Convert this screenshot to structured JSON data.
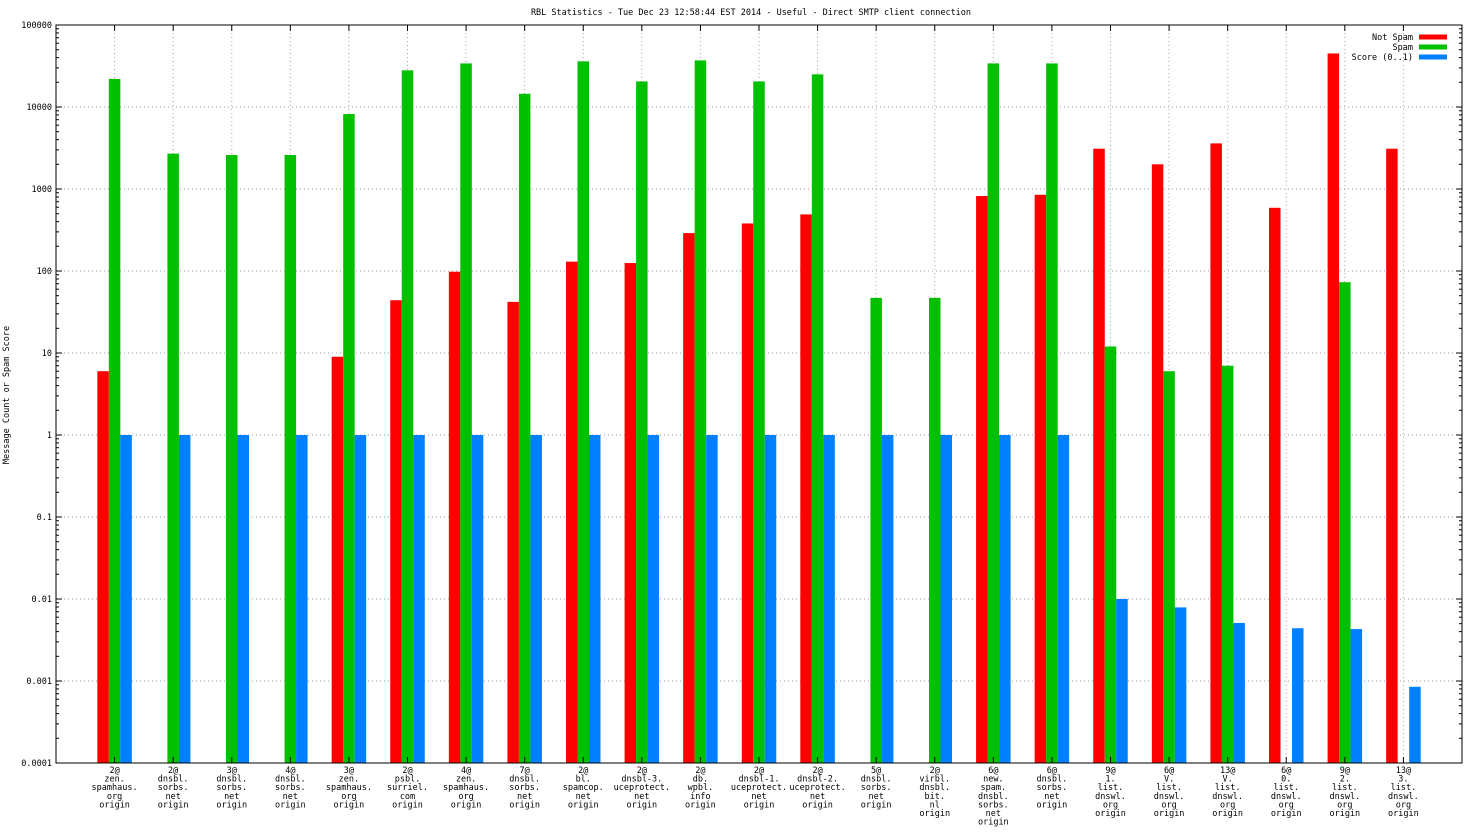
{
  "chart_data": {
    "type": "bar",
    "title": "RBL Statistics - Tue Dec 23 12:58:44 EST 2014 - Useful - Direct SMTP client connection",
    "xlabel": "",
    "ylabel": "Message Count or Spam Score",
    "yscale": "log",
    "ylim": [
      0.0001,
      100000
    ],
    "ytick_values": [
      0.0001,
      0.001,
      0.01,
      0.1,
      1,
      10,
      100,
      1000,
      10000,
      100000
    ],
    "ytick_labels": [
      "0.0001",
      "0.001",
      "0.01",
      "0.1",
      "1",
      "10",
      "100",
      "1000",
      "10000",
      "100000"
    ],
    "grid": true,
    "legend_position": "top-right",
    "categories": [
      [
        "2@",
        "zen.",
        "spamhaus.",
        "org",
        "origin"
      ],
      [
        "2@",
        "dnsbl.",
        "sorbs.",
        "net",
        "origin"
      ],
      [
        "3@",
        "dnsbl.",
        "sorbs.",
        "net",
        "origin"
      ],
      [
        "4@",
        "dnsbl.",
        "sorbs.",
        "net",
        "origin"
      ],
      [
        "3@",
        "zen.",
        "spamhaus.",
        "org",
        "origin"
      ],
      [
        "2@",
        "psbl.",
        "surriel.",
        "com",
        "origin"
      ],
      [
        "4@",
        "zen.",
        "spamhaus.",
        "org",
        "origin"
      ],
      [
        "7@",
        "dnsbl.",
        "sorbs.",
        "net",
        "origin"
      ],
      [
        "2@",
        "bl.",
        "spamcop.",
        "net",
        "origin"
      ],
      [
        "2@",
        "dnsbl-3.",
        "uceprotect.",
        "net",
        "origin"
      ],
      [
        "2@",
        "db.",
        "wpbl.",
        "info",
        "origin"
      ],
      [
        "2@",
        "dnsbl-1.",
        "uceprotect.",
        "net",
        "origin"
      ],
      [
        "2@",
        "dnsbl-2.",
        "uceprotect.",
        "net",
        "origin"
      ],
      [
        "5@",
        "dnsbl.",
        "sorbs.",
        "net",
        "origin"
      ],
      [
        "2@",
        "virbl.",
        "dnsbl.",
        "bit.",
        "nl",
        "origin"
      ],
      [
        "6@",
        "new.",
        "spam.",
        "dnsbl.",
        "sorbs.",
        "net",
        "origin"
      ],
      [
        "6@",
        "dnsbl.",
        "sorbs.",
        "net",
        "origin"
      ],
      [
        "9@",
        "1.",
        "list.",
        "dnswl.",
        "org",
        "origin"
      ],
      [
        "6@",
        "V.",
        "list.",
        "dnswl.",
        "org",
        "origin"
      ],
      [
        "13@",
        "V.",
        "list.",
        "dnswl.",
        "org",
        "origin"
      ],
      [
        "6@",
        "0.",
        "list.",
        "dnswl.",
        "org",
        "origin"
      ],
      [
        "9@",
        "2.",
        "list.",
        "dnswl.",
        "org",
        "origin"
      ],
      [
        "13@",
        "3.",
        "list.",
        "dnswl.",
        "org",
        "origin"
      ]
    ],
    "series": [
      {
        "name": "Not Spam",
        "color": "#ff0000",
        "values": [
          6,
          null,
          null,
          null,
          9,
          44,
          98,
          42,
          130,
          125,
          290,
          380,
          490,
          null,
          null,
          820,
          850,
          3100,
          2000,
          3600,
          590,
          45000,
          3100
        ]
      },
      {
        "name": "Spam",
        "color": "#00c000",
        "values": [
          22000,
          2700,
          2600,
          2600,
          8200,
          28000,
          34000,
          14500,
          36000,
          20500,
          37000,
          20500,
          25000,
          47,
          47,
          34000,
          34000,
          12,
          6,
          7,
          null,
          73,
          null
        ]
      },
      {
        "name": "Score (0..1)",
        "color": "#0080ff",
        "values": [
          1,
          1,
          1,
          1,
          1,
          1,
          1,
          1,
          1,
          1,
          1,
          1,
          1,
          1,
          1,
          1,
          1,
          0.01,
          0.0079,
          0.0051,
          0.0044,
          0.0043,
          0.00085
        ]
      }
    ]
  }
}
